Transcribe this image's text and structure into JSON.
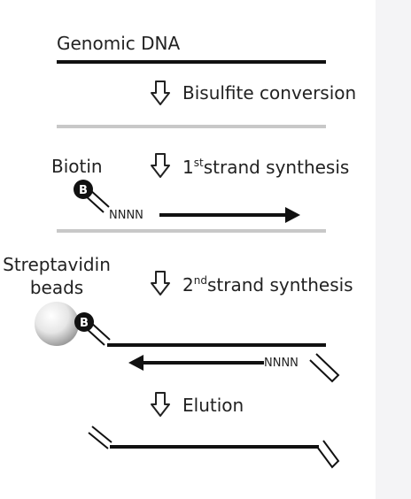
{
  "labels": {
    "genomic_dna": "Genomic DNA",
    "bisulfite": "Bisulfite conversion",
    "biotin": "Biotin",
    "first_ord": "1",
    "first_sup": "st",
    "first_rest": "strand synthesis",
    "streptavidin_line1": "Streptavidin",
    "streptavidin_line2": "beads",
    "second_ord": "2",
    "second_sup": "nd",
    "second_rest": "strand synthesis",
    "elution": "Elution",
    "biotin_badge": "B",
    "random_primer": "NNNN"
  },
  "colors": {
    "strand": "#111111",
    "converted_strand": "#c8c8c8",
    "bead": "#d8d8d8",
    "badge": "#111111"
  },
  "icons": {
    "step_arrow": "hollow-down-arrow-icon"
  }
}
